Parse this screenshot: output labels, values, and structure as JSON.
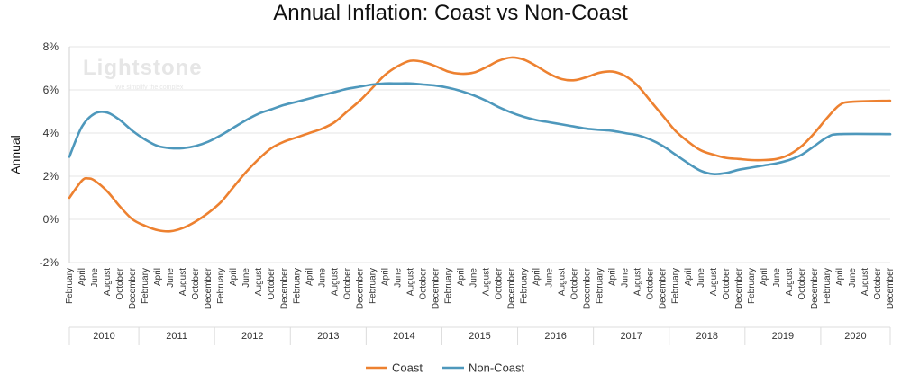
{
  "chart_data": {
    "type": "line",
    "title": "Annual Inflation: Coast vs Non-Coast",
    "xlabel": "",
    "ylabel": "Annual",
    "ylim": [
      -2,
      8
    ],
    "yticks": [
      "-2%",
      "0%",
      "2%",
      "4%",
      "6%",
      "8%"
    ],
    "grid": true,
    "legend_position": "bottom-center",
    "watermark": {
      "brand": "Lightstone",
      "tagline": "We simplify the complex"
    },
    "x_month_labels": [
      "February",
      "April",
      "June",
      "August",
      "October",
      "December"
    ],
    "years": [
      "2010",
      "2011",
      "2012",
      "2013",
      "2014",
      "2015",
      "2016",
      "2017",
      "2018",
      "2019",
      "2020"
    ],
    "x_start": "2010-02",
    "x_end": "2020-12",
    "series": [
      {
        "name": "Coast",
        "color": "#ED8130",
        "points": [
          [
            "2010-02",
            1.0
          ],
          [
            "2010-04",
            1.8
          ],
          [
            "2010-05",
            1.9
          ],
          [
            "2010-06",
            1.8
          ],
          [
            "2010-08",
            1.3
          ],
          [
            "2010-10",
            0.6
          ],
          [
            "2010-12",
            0.0
          ],
          [
            "2011-02",
            -0.3
          ],
          [
            "2011-04",
            -0.5
          ],
          [
            "2011-06",
            -0.55
          ],
          [
            "2011-08",
            -0.4
          ],
          [
            "2011-10",
            -0.1
          ],
          [
            "2011-12",
            0.3
          ],
          [
            "2012-02",
            0.8
          ],
          [
            "2012-04",
            1.5
          ],
          [
            "2012-06",
            2.2
          ],
          [
            "2012-08",
            2.8
          ],
          [
            "2012-10",
            3.3
          ],
          [
            "2012-12",
            3.6
          ],
          [
            "2013-02",
            3.8
          ],
          [
            "2013-04",
            4.0
          ],
          [
            "2013-06",
            4.2
          ],
          [
            "2013-08",
            4.5
          ],
          [
            "2013-10",
            5.0
          ],
          [
            "2013-12",
            5.5
          ],
          [
            "2014-02",
            6.1
          ],
          [
            "2014-04",
            6.7
          ],
          [
            "2014-06",
            7.1
          ],
          [
            "2014-08",
            7.35
          ],
          [
            "2014-10",
            7.3
          ],
          [
            "2014-12",
            7.1
          ],
          [
            "2015-02",
            6.85
          ],
          [
            "2015-04",
            6.75
          ],
          [
            "2015-06",
            6.8
          ],
          [
            "2015-08",
            7.05
          ],
          [
            "2015-10",
            7.35
          ],
          [
            "2015-12",
            7.5
          ],
          [
            "2016-02",
            7.4
          ],
          [
            "2016-04",
            7.1
          ],
          [
            "2016-06",
            6.75
          ],
          [
            "2016-08",
            6.5
          ],
          [
            "2016-10",
            6.45
          ],
          [
            "2016-12",
            6.6
          ],
          [
            "2017-02",
            6.8
          ],
          [
            "2017-04",
            6.85
          ],
          [
            "2017-06",
            6.65
          ],
          [
            "2017-08",
            6.2
          ],
          [
            "2017-10",
            5.5
          ],
          [
            "2017-12",
            4.8
          ],
          [
            "2018-02",
            4.1
          ],
          [
            "2018-04",
            3.6
          ],
          [
            "2018-06",
            3.2
          ],
          [
            "2018-08",
            3.0
          ],
          [
            "2018-10",
            2.85
          ],
          [
            "2018-12",
            2.8
          ],
          [
            "2019-02",
            2.75
          ],
          [
            "2019-04",
            2.75
          ],
          [
            "2019-06",
            2.8
          ],
          [
            "2019-08",
            3.0
          ],
          [
            "2019-10",
            3.4
          ],
          [
            "2019-12",
            4.0
          ],
          [
            "2020-02",
            4.7
          ],
          [
            "2020-04",
            5.3
          ],
          [
            "2020-06",
            5.45
          ],
          [
            "2020-12",
            5.5
          ]
        ]
      },
      {
        "name": "Non-Coast",
        "color": "#4E98BC",
        "points": [
          [
            "2010-02",
            2.9
          ],
          [
            "2010-04",
            4.3
          ],
          [
            "2010-06",
            4.9
          ],
          [
            "2010-08",
            4.95
          ],
          [
            "2010-10",
            4.6
          ],
          [
            "2010-12",
            4.1
          ],
          [
            "2011-02",
            3.7
          ],
          [
            "2011-04",
            3.4
          ],
          [
            "2011-06",
            3.3
          ],
          [
            "2011-08",
            3.3
          ],
          [
            "2011-10",
            3.4
          ],
          [
            "2011-12",
            3.6
          ],
          [
            "2012-02",
            3.9
          ],
          [
            "2012-04",
            4.25
          ],
          [
            "2012-06",
            4.6
          ],
          [
            "2012-08",
            4.9
          ],
          [
            "2012-10",
            5.1
          ],
          [
            "2012-12",
            5.3
          ],
          [
            "2013-02",
            5.45
          ],
          [
            "2013-04",
            5.6
          ],
          [
            "2013-06",
            5.75
          ],
          [
            "2013-08",
            5.9
          ],
          [
            "2013-10",
            6.05
          ],
          [
            "2013-12",
            6.15
          ],
          [
            "2014-02",
            6.25
          ],
          [
            "2014-04",
            6.3
          ],
          [
            "2014-06",
            6.3
          ],
          [
            "2014-08",
            6.3
          ],
          [
            "2014-10",
            6.25
          ],
          [
            "2014-12",
            6.2
          ],
          [
            "2015-02",
            6.1
          ],
          [
            "2015-04",
            5.95
          ],
          [
            "2015-06",
            5.75
          ],
          [
            "2015-08",
            5.5
          ],
          [
            "2015-10",
            5.2
          ],
          [
            "2015-12",
            4.95
          ],
          [
            "2016-02",
            4.75
          ],
          [
            "2016-04",
            4.6
          ],
          [
            "2016-06",
            4.5
          ],
          [
            "2016-08",
            4.4
          ],
          [
            "2016-10",
            4.3
          ],
          [
            "2016-12",
            4.2
          ],
          [
            "2017-02",
            4.15
          ],
          [
            "2017-04",
            4.1
          ],
          [
            "2017-06",
            4.0
          ],
          [
            "2017-08",
            3.9
          ],
          [
            "2017-10",
            3.7
          ],
          [
            "2017-12",
            3.4
          ],
          [
            "2018-02",
            3.0
          ],
          [
            "2018-04",
            2.6
          ],
          [
            "2018-06",
            2.25
          ],
          [
            "2018-08",
            2.1
          ],
          [
            "2018-10",
            2.15
          ],
          [
            "2018-12",
            2.3
          ],
          [
            "2019-02",
            2.4
          ],
          [
            "2019-04",
            2.5
          ],
          [
            "2019-06",
            2.6
          ],
          [
            "2019-08",
            2.75
          ],
          [
            "2019-10",
            3.0
          ],
          [
            "2019-12",
            3.4
          ],
          [
            "2020-02",
            3.8
          ],
          [
            "2020-04",
            3.95
          ],
          [
            "2020-12",
            3.95
          ]
        ]
      }
    ]
  }
}
